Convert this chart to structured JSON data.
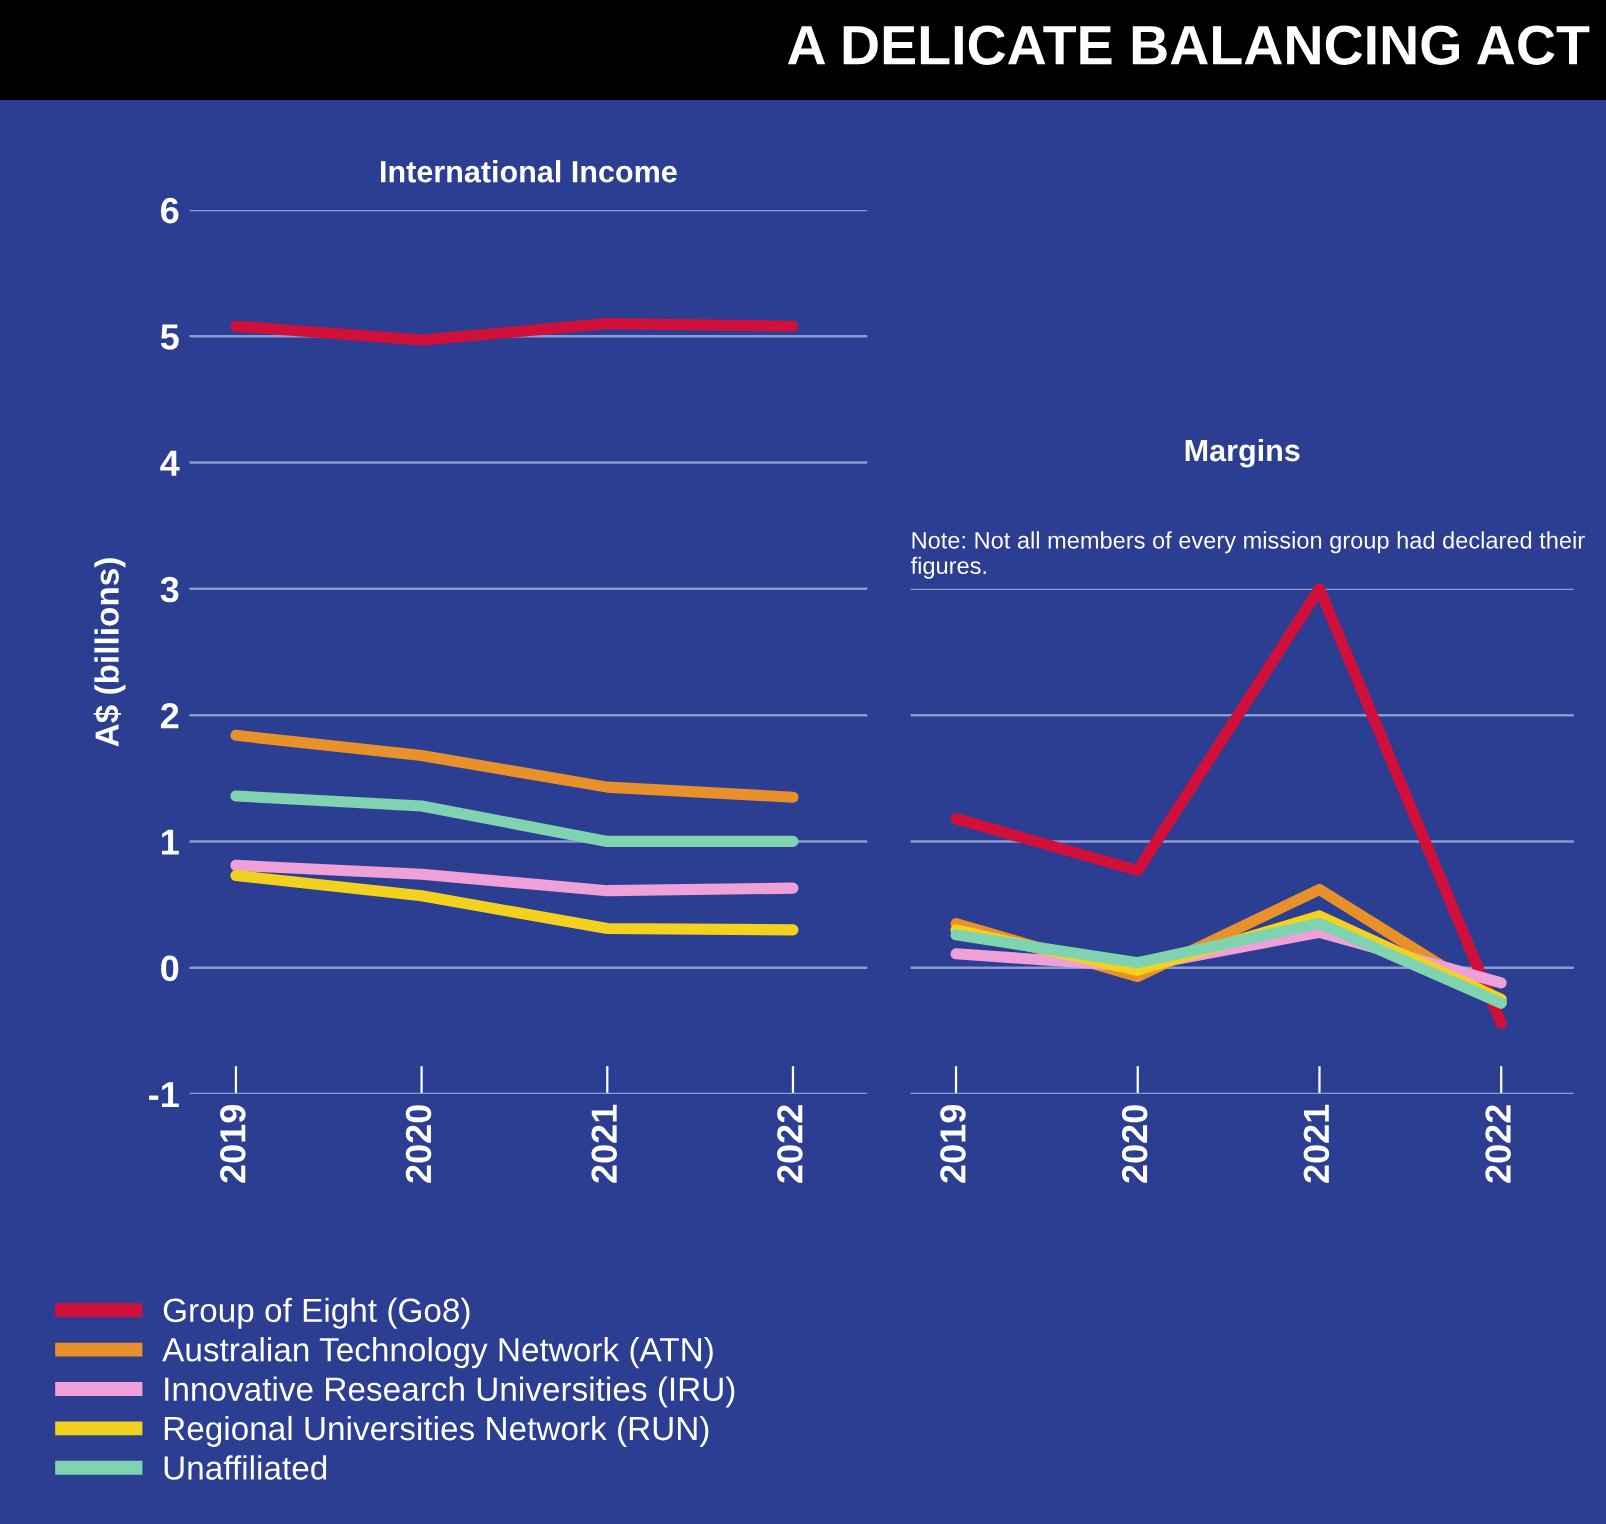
{
  "chart_data": [
    {
      "type": "other",
      "title": "A DELICATE BALANCING ACT"
    },
    {
      "type": "line",
      "title": "International Income",
      "ylabel": "A$ (billions)",
      "categories": [
        "2019",
        "2020",
        "2021",
        "2022"
      ],
      "ylim": [
        -1,
        6
      ],
      "yticks": [
        -1,
        0,
        1,
        2,
        3,
        4,
        5,
        6
      ],
      "grid": "y",
      "legend": "bottom left",
      "line_style": "solid",
      "marker": "none",
      "series": [
        {
          "name": "Group of Eight (Go8)",
          "color": "#d0103a",
          "values": [
            5.08,
            4.97,
            5.1,
            5.08
          ]
        },
        {
          "name": "Australian Technology Network (ATN)",
          "color": "#e8912a",
          "values": [
            1.84,
            1.68,
            1.43,
            1.35
          ]
        },
        {
          "name": "Innovative Research Universities (IRU)",
          "color": "#f0a0d8",
          "values": [
            0.81,
            0.74,
            0.61,
            0.63
          ]
        },
        {
          "name": "Regional Universities Network (RUN)",
          "color": "#f2d21e",
          "values": [
            0.73,
            0.57,
            0.31,
            0.3
          ]
        },
        {
          "name": "Unaffiliated",
          "color": "#7fd3b0",
          "values": [
            1.36,
            1.28,
            1.0,
            1.0
          ]
        }
      ]
    },
    {
      "type": "line",
      "title": "Margins",
      "annotations": [
        "Note: Not all members of every mission group had declared their figures."
      ],
      "categories": [
        "2019",
        "2020",
        "2021",
        "2022"
      ],
      "ylim": [
        -1,
        3
      ],
      "yticks": [
        -1,
        0,
        1,
        2,
        3
      ],
      "tick_labels": "x",
      "grid": "y",
      "line_style": "solid",
      "marker": "none",
      "series": [
        {
          "color": "#d0103a",
          "values": [
            1.18,
            0.77,
            3.0,
            -0.44
          ]
        },
        {
          "color": "#e8912a",
          "values": [
            0.35,
            -0.07,
            0.62,
            -0.28
          ]
        },
        {
          "color": "#f0a0d8",
          "values": [
            0.11,
            0.01,
            0.28,
            -0.12
          ]
        },
        {
          "color": "#f2d21e",
          "values": [
            0.3,
            -0.02,
            0.41,
            -0.25
          ]
        },
        {
          "color": "#7fd3b0",
          "values": [
            0.26,
            0.04,
            0.35,
            -0.28
          ]
        }
      ]
    }
  ]
}
